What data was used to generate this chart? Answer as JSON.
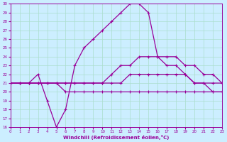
{
  "xlabel": "Windchill (Refroidissement éolien,°C)",
  "hours": [
    0,
    1,
    2,
    3,
    4,
    5,
    6,
    7,
    8,
    9,
    10,
    11,
    12,
    13,
    14,
    15,
    16,
    17,
    18,
    19,
    20,
    21,
    22,
    23
  ],
  "line1": [
    21,
    21,
    21,
    22,
    19,
    16,
    18,
    23,
    25,
    26,
    27,
    28,
    29,
    30,
    30,
    29,
    24,
    23,
    23,
    22,
    21,
    21,
    20,
    20
  ],
  "line2": [
    21,
    21,
    21,
    21,
    21,
    21,
    21,
    21,
    21,
    21,
    21,
    22,
    23,
    23,
    24,
    24,
    24,
    24,
    24,
    23,
    23,
    22,
    22,
    21
  ],
  "line3": [
    21,
    21,
    21,
    21,
    21,
    21,
    21,
    21,
    21,
    21,
    21,
    21,
    21,
    22,
    22,
    22,
    22,
    22,
    22,
    22,
    21,
    21,
    21,
    21
  ],
  "line4": [
    21,
    21,
    21,
    21,
    21,
    21,
    20,
    20,
    20,
    20,
    20,
    20,
    20,
    20,
    20,
    20,
    20,
    20,
    20,
    20,
    20,
    20,
    20,
    20
  ],
  "line_color": "#990099",
  "bg_color": "#cceeff",
  "grid_color": "#aaddcc",
  "ylim": [
    16,
    30
  ],
  "xlim": [
    0,
    23
  ],
  "yticks": [
    16,
    17,
    18,
    19,
    20,
    21,
    22,
    23,
    24,
    25,
    26,
    27,
    28,
    29,
    30
  ],
  "xticks": [
    0,
    1,
    2,
    3,
    4,
    5,
    6,
    7,
    8,
    9,
    10,
    11,
    12,
    13,
    14,
    15,
    16,
    17,
    18,
    19,
    20,
    21,
    22,
    23
  ]
}
